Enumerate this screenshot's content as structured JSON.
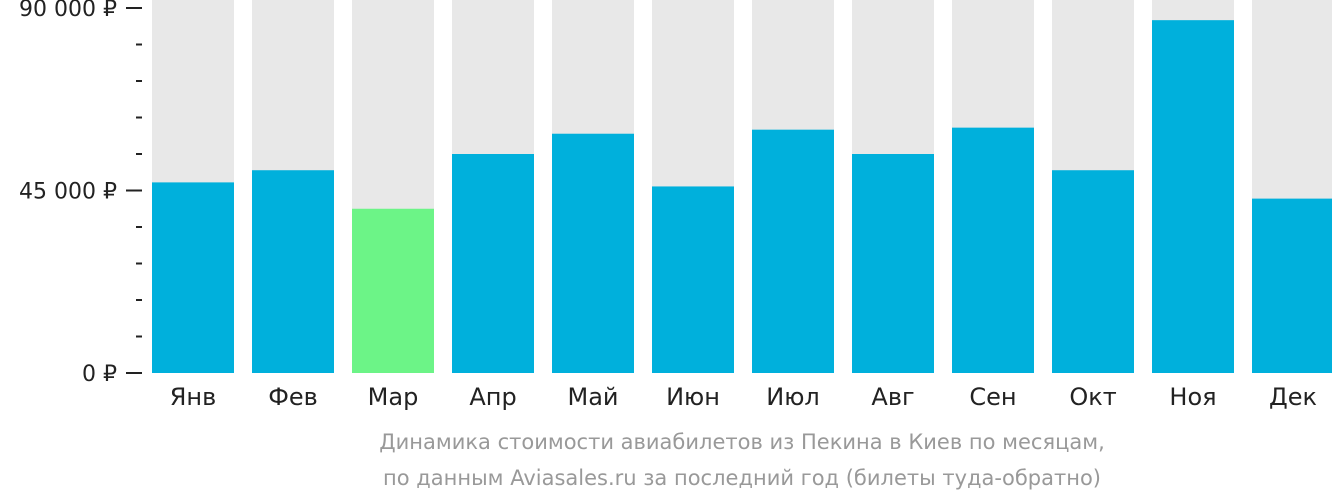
{
  "chart_data": {
    "type": "bar",
    "categories": [
      "Янв",
      "Фев",
      "Мар",
      "Апр",
      "Май",
      "Июн",
      "Июл",
      "Авг",
      "Сен",
      "Окт",
      "Ноя",
      "Дек"
    ],
    "values": [
      47000,
      50000,
      40500,
      54000,
      59000,
      46000,
      60000,
      54000,
      60500,
      50000,
      87000,
      43000
    ],
    "ylim": [
      0,
      90000
    ],
    "yticks": [
      {
        "value": 0,
        "label": "0 ₽"
      },
      {
        "value": 45000,
        "label": "45 000 ₽"
      },
      {
        "value": 90000,
        "label": "90 000 ₽"
      }
    ],
    "minor_tick_step": 9000,
    "highlight_index": 2,
    "colors": {
      "bar": "#00b0dc",
      "highlight": "#6cf487",
      "track": "#e8e8e8",
      "axis": "#222222",
      "caption": "#999999"
    }
  },
  "caption": {
    "line1": "Динамика стоимости авиабилетов из Пекина в Киев по месяцам,",
    "line2": "по данным Aviasales.ru за последний год (билеты туда-обратно)"
  }
}
